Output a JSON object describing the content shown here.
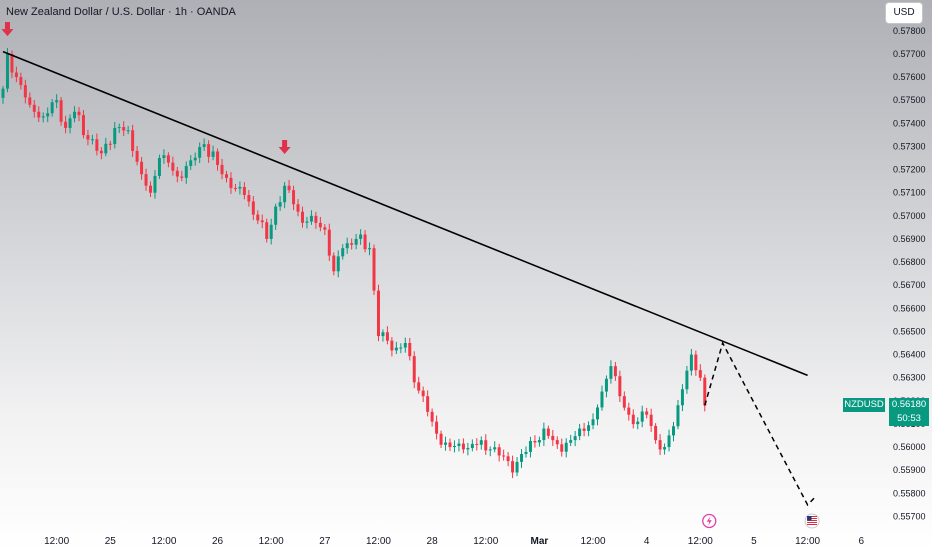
{
  "header": {
    "title": "New Zealand Dollar / U.S. Dollar · 1h · OANDA",
    "currency": "USD"
  },
  "tags": {
    "symbol": "NZDUSD",
    "price": "0.56180",
    "countdown": "50:53"
  },
  "colors": {
    "up": "#089981",
    "down": "#f23645",
    "line": "#000000",
    "marker": "#e0314a",
    "event_lightning": "#e03ea6"
  },
  "chart_data": {
    "type": "candlestick",
    "symbol": "NZDUSD",
    "interval": "1h",
    "ylim": [
      0.5565,
      0.5789
    ],
    "y_ticks": [
      "0.57800",
      "0.57700",
      "0.57600",
      "0.57500",
      "0.57400",
      "0.57300",
      "0.57200",
      "0.57100",
      "0.57000",
      "0.56900",
      "0.56800",
      "0.56700",
      "0.56600",
      "0.56500",
      "0.56400",
      "0.56300",
      "0.56200",
      "0.56100",
      "0.56000",
      "0.55900",
      "0.55800",
      "0.55700"
    ],
    "x_ticks": [
      {
        "label": "12:00",
        "t": 12
      },
      {
        "label": "25",
        "t": 24
      },
      {
        "label": "12:00",
        "t": 36
      },
      {
        "label": "26",
        "t": 48
      },
      {
        "label": "12:00",
        "t": 60
      },
      {
        "label": "27",
        "t": 72
      },
      {
        "label": "12:00",
        "t": 84
      },
      {
        "label": "28",
        "t": 96
      },
      {
        "label": "12:00",
        "t": 108
      },
      {
        "label": "Mar",
        "t": 120,
        "bold": true
      },
      {
        "label": "12:00",
        "t": 132
      },
      {
        "label": "4",
        "t": 144
      },
      {
        "label": "12:00",
        "t": 156
      },
      {
        "label": "5",
        "t": 168
      },
      {
        "label": "12:00",
        "t": 180
      },
      {
        "label": "6",
        "t": 192
      }
    ],
    "anchors": [
      [
        0,
        0.5755
      ],
      [
        1,
        0.577
      ],
      [
        3,
        0.576
      ],
      [
        6,
        0.5748
      ],
      [
        9,
        0.5743
      ],
      [
        12,
        0.575
      ],
      [
        14,
        0.5738
      ],
      [
        16,
        0.5745
      ],
      [
        19,
        0.5733
      ],
      [
        22,
        0.5727
      ],
      [
        25,
        0.5738
      ],
      [
        28,
        0.5737
      ],
      [
        31,
        0.5718
      ],
      [
        33,
        0.571
      ],
      [
        35,
        0.5725
      ],
      [
        37,
        0.5723
      ],
      [
        39,
        0.5717
      ],
      [
        42,
        0.5724
      ],
      [
        45,
        0.5731
      ],
      [
        48,
        0.5722
      ],
      [
        51,
        0.5712
      ],
      [
        54,
        0.5709
      ],
      [
        57,
        0.5698
      ],
      [
        59,
        0.569
      ],
      [
        61,
        0.5704
      ],
      [
        63,
        0.5713
      ],
      [
        65,
        0.5705
      ],
      [
        67,
        0.5697
      ],
      [
        69,
        0.57
      ],
      [
        72,
        0.5694
      ],
      [
        74,
        0.5676
      ],
      [
        76,
        0.5686
      ],
      [
        79,
        0.569
      ],
      [
        82,
        0.5686
      ],
      [
        84,
        0.5648
      ],
      [
        86,
        0.5646
      ],
      [
        88,
        0.5643
      ],
      [
        90,
        0.5645
      ],
      [
        92,
        0.5628
      ],
      [
        94,
        0.5622
      ],
      [
        96,
        0.5611
      ],
      [
        98,
        0.5601
      ],
      [
        100,
        0.56
      ],
      [
        103,
        0.5599
      ],
      [
        106,
        0.5601
      ],
      [
        109,
        0.5599
      ],
      [
        112,
        0.5596
      ],
      [
        114,
        0.5589
      ],
      [
        116,
        0.5597
      ],
      [
        119,
        0.5602
      ],
      [
        121,
        0.5608
      ],
      [
        123,
        0.5603
      ],
      [
        125,
        0.5598
      ],
      [
        127,
        0.5603
      ],
      [
        129,
        0.5608
      ],
      [
        132,
        0.5612
      ],
      [
        134,
        0.5624
      ],
      [
        136,
        0.5635
      ],
      [
        138,
        0.5622
      ],
      [
        140,
        0.5614
      ],
      [
        142,
        0.5611
      ],
      [
        144,
        0.5614
      ],
      [
        146,
        0.5603
      ],
      [
        148,
        0.56
      ],
      [
        150,
        0.5609
      ],
      [
        152,
        0.5625
      ],
      [
        154,
        0.564
      ],
      [
        156,
        0.563
      ],
      [
        157,
        0.5618
      ]
    ],
    "last_index": 157,
    "trendline": [
      [
        0,
        0.5771
      ],
      [
        180,
        0.5631
      ]
    ],
    "projection": [
      [
        157,
        0.5618
      ],
      [
        161,
        0.5645
      ],
      [
        180,
        0.5575
      ],
      [
        182,
        0.5579
      ]
    ],
    "down_markers": [
      [
        1,
        0.5776
      ],
      [
        63,
        0.5725
      ]
    ],
    "events": [
      {
        "t": 158,
        "type": "lightning"
      },
      {
        "t": 181,
        "type": "us-flag"
      }
    ]
  }
}
